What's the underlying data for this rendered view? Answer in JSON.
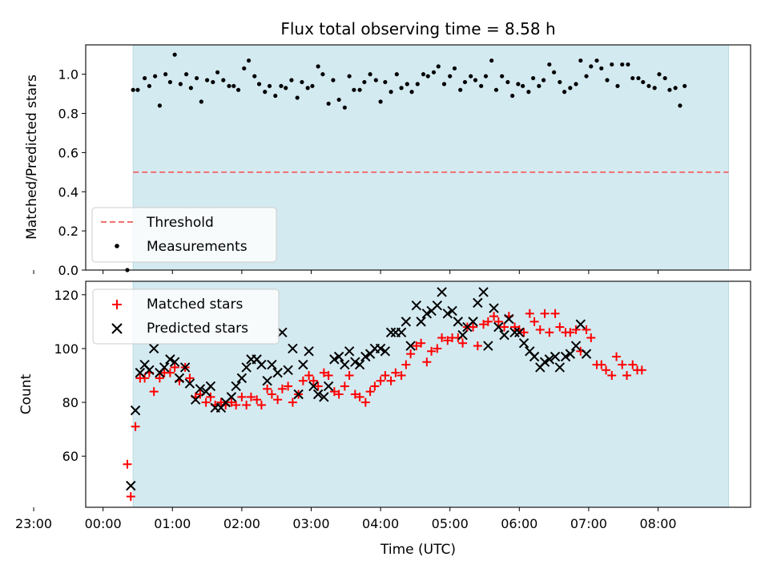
{
  "chart_data": {
    "type": "scatter",
    "title": "Flux total observing time = 8.58 h",
    "xlabel": "Time (UTC)",
    "x_ticks": [
      "23:00",
      "00:00",
      "01:00",
      "02:00",
      "03:00",
      "04:00",
      "05:00",
      "06:00",
      "07:00",
      "08:00"
    ],
    "x_range_minutes": [
      -15,
      560
    ],
    "observing_window_minutes": [
      26,
      541
    ],
    "shade_color": "#d4eaf1",
    "top": {
      "ylabel": "Matched/Predicted stars",
      "ylim": [
        0.0,
        1.15
      ],
      "y_ticks": [
        "0.0",
        "0.2",
        "0.4",
        "0.6",
        "0.8",
        "1.0"
      ],
      "threshold": 0.5,
      "threshold_color": "#f07070",
      "legend": {
        "threshold_label": "Threshold",
        "measurements_label": "Measurements",
        "placement": "lower-left"
      },
      "measurements": [
        [
          21,
          0.0
        ],
        [
          26,
          0.92
        ],
        [
          30,
          0.92
        ],
        [
          36,
          0.98
        ],
        [
          40,
          0.94
        ],
        [
          45,
          0.99
        ],
        [
          49,
          0.84
        ],
        [
          54,
          1.0
        ],
        [
          58,
          0.96
        ],
        [
          62,
          1.1
        ],
        [
          67,
          0.95
        ],
        [
          72,
          1.0
        ],
        [
          76,
          0.93
        ],
        [
          81,
          0.98
        ],
        [
          85,
          0.86
        ],
        [
          90,
          0.97
        ],
        [
          95,
          0.96
        ],
        [
          99,
          1.01
        ],
        [
          104,
          0.97
        ],
        [
          109,
          0.94
        ],
        [
          113,
          0.94
        ],
        [
          117,
          0.92
        ],
        [
          122,
          1.03
        ],
        [
          126,
          1.07
        ],
        [
          131,
          0.99
        ],
        [
          135,
          0.95
        ],
        [
          140,
          0.91
        ],
        [
          144,
          0.94
        ],
        [
          149,
          0.89
        ],
        [
          154,
          0.94
        ],
        [
          158,
          0.93
        ],
        [
          163,
          0.97
        ],
        [
          168,
          0.88
        ],
        [
          172,
          0.96
        ],
        [
          177,
          0.93
        ],
        [
          181,
          0.94
        ],
        [
          186,
          1.04
        ],
        [
          190,
          1.0
        ],
        [
          195,
          0.85
        ],
        [
          199,
          0.97
        ],
        [
          204,
          0.87
        ],
        [
          209,
          0.83
        ],
        [
          213,
          0.99
        ],
        [
          217,
          0.92
        ],
        [
          222,
          0.92
        ],
        [
          226,
          0.96
        ],
        [
          231,
          1.0
        ],
        [
          236,
          0.97
        ],
        [
          240,
          0.86
        ],
        [
          244,
          0.96
        ],
        [
          249,
          0.91
        ],
        [
          254,
          1.0
        ],
        [
          258,
          0.93
        ],
        [
          263,
          0.95
        ],
        [
          267,
          0.91
        ],
        [
          272,
          0.95
        ],
        [
          277,
          1.0
        ],
        [
          281,
          0.99
        ],
        [
          286,
          1.01
        ],
        [
          290,
          1.04
        ],
        [
          295,
          0.95
        ],
        [
          300,
          0.99
        ],
        [
          304,
          1.03
        ],
        [
          309,
          0.92
        ],
        [
          313,
          0.96
        ],
        [
          318,
          0.99
        ],
        [
          322,
          0.97
        ],
        [
          327,
          0.94
        ],
        [
          331,
          0.99
        ],
        [
          336,
          1.07
        ],
        [
          340,
          0.92
        ],
        [
          345,
          0.99
        ],
        [
          350,
          0.96
        ],
        [
          354,
          0.89
        ],
        [
          359,
          0.95
        ],
        [
          363,
          0.94
        ],
        [
          368,
          0.91
        ],
        [
          372,
          0.98
        ],
        [
          377,
          0.94
        ],
        [
          381,
          0.97
        ],
        [
          386,
          1.05
        ],
        [
          390,
          1.01
        ],
        [
          395,
          0.96
        ],
        [
          399,
          0.91
        ],
        [
          404,
          0.93
        ],
        [
          409,
          0.95
        ],
        [
          413,
          1.07
        ],
        [
          418,
          0.99
        ],
        [
          422,
          1.04
        ],
        [
          427,
          1.07
        ],
        [
          431,
          1.03
        ],
        [
          436,
          0.97
        ],
        [
          440,
          1.05
        ],
        [
          445,
          0.94
        ],
        [
          449,
          1.05
        ],
        [
          454,
          1.05
        ],
        [
          458,
          0.98
        ],
        [
          463,
          0.98
        ],
        [
          467,
          0.96
        ],
        [
          472,
          0.94
        ],
        [
          477,
          0.93
        ],
        [
          481,
          1.0
        ],
        [
          486,
          0.98
        ],
        [
          490,
          0.92
        ],
        [
          495,
          0.93
        ],
        [
          499,
          0.84
        ],
        [
          503,
          0.94
        ]
      ]
    },
    "bottom": {
      "ylabel": "Count",
      "ylim": [
        41,
        125
      ],
      "y_ticks": [
        "60",
        "80",
        "100",
        "120"
      ],
      "legend": {
        "matched_label": "Matched stars",
        "predicted_label": "Predicted stars",
        "placement": "upper-left"
      },
      "matched_color": "#ff0000",
      "predicted_color": "#000000",
      "series": [
        {
          "name": "Matched stars",
          "points": [
            [
              21,
              57
            ],
            [
              24,
              45
            ],
            [
              28,
              71
            ],
            [
              32,
              89
            ],
            [
              36,
              89
            ],
            [
              40,
              91
            ],
            [
              44,
              84
            ],
            [
              49,
              89
            ],
            [
              53,
              91
            ],
            [
              58,
              91
            ],
            [
              62,
              93
            ],
            [
              66,
              88
            ],
            [
              71,
              93
            ],
            [
              75,
              89
            ],
            [
              80,
              82
            ],
            [
              84,
              83
            ],
            [
              89,
              80
            ],
            [
              93,
              82
            ],
            [
              97,
              79
            ],
            [
              102,
              80
            ],
            [
              106,
              79
            ],
            [
              111,
              80
            ],
            [
              115,
              79
            ],
            [
              120,
              82
            ],
            [
              124,
              79
            ],
            [
              128,
              82
            ],
            [
              133,
              81
            ],
            [
              137,
              79
            ],
            [
              142,
              85
            ],
            [
              146,
              83
            ],
            [
              151,
              81
            ],
            [
              155,
              85
            ],
            [
              160,
              86
            ],
            [
              164,
              80
            ],
            [
              169,
              83
            ],
            [
              173,
              88
            ],
            [
              178,
              90
            ],
            [
              182,
              88
            ],
            [
              186,
              86
            ],
            [
              191,
              91
            ],
            [
              195,
              90
            ],
            [
              200,
              84
            ],
            [
              204,
              83
            ],
            [
              209,
              86
            ],
            [
              213,
              90
            ],
            [
              218,
              83
            ],
            [
              222,
              82
            ],
            [
              227,
              80
            ],
            [
              231,
              84
            ],
            [
              235,
              86
            ],
            [
              240,
              88
            ],
            [
              244,
              90
            ],
            [
              249,
              88
            ],
            [
              253,
              91
            ],
            [
              258,
              90
            ],
            [
              262,
              94
            ],
            [
              266,
              98
            ],
            [
              271,
              101
            ],
            [
              275,
              102
            ],
            [
              280,
              95
            ],
            [
              284,
              99
            ],
            [
              289,
              100
            ],
            [
              293,
              104
            ],
            [
              298,
              103
            ],
            [
              302,
              104
            ],
            [
              307,
              104
            ],
            [
              311,
              102
            ],
            [
              315,
              108
            ],
            [
              320,
              108
            ],
            [
              324,
              101
            ],
            [
              329,
              109
            ],
            [
              333,
              110
            ],
            [
              338,
              112
            ],
            [
              342,
              110
            ],
            [
              347,
              108
            ],
            [
              351,
              112
            ],
            [
              356,
              108
            ],
            [
              360,
              107
            ],
            [
              364,
              106
            ],
            [
              369,
              113
            ],
            [
              373,
              110
            ],
            [
              378,
              107
            ],
            [
              382,
              113
            ],
            [
              386,
              106
            ],
            [
              391,
              113
            ],
            [
              395,
              108
            ],
            [
              400,
              106
            ],
            [
              404,
              106
            ],
            [
              409,
              107
            ],
            [
              413,
              99
            ],
            [
              418,
              107
            ],
            [
              422,
              104
            ],
            [
              427,
              94
            ],
            [
              431,
              94
            ],
            [
              435,
              92
            ],
            [
              440,
              90
            ],
            [
              444,
              97
            ],
            [
              449,
              94
            ],
            [
              453,
              90
            ],
            [
              458,
              94
            ],
            [
              462,
              92
            ],
            [
              466,
              92
            ]
          ]
        },
        {
          "name": "Predicted stars",
          "points": [
            [
              24,
              49
            ],
            [
              28,
              77
            ],
            [
              32,
              91
            ],
            [
              36,
              94
            ],
            [
              40,
              92
            ],
            [
              44,
              100
            ],
            [
              49,
              91
            ],
            [
              53,
              93
            ],
            [
              58,
              96
            ],
            [
              62,
              95
            ],
            [
              66,
              89
            ],
            [
              71,
              93
            ],
            [
              75,
              87
            ],
            [
              80,
              81
            ],
            [
              84,
              85
            ],
            [
              89,
              84
            ],
            [
              93,
              86
            ],
            [
              97,
              78
            ],
            [
              102,
              78
            ],
            [
              106,
              80
            ],
            [
              111,
              82
            ],
            [
              115,
              86
            ],
            [
              120,
              89
            ],
            [
              124,
              93
            ],
            [
              128,
              96
            ],
            [
              133,
              96
            ],
            [
              137,
              94
            ],
            [
              142,
              88
            ],
            [
              146,
              94
            ],
            [
              151,
              91
            ],
            [
              155,
              106
            ],
            [
              160,
              92
            ],
            [
              164,
              100
            ],
            [
              169,
              83
            ],
            [
              173,
              94
            ],
            [
              178,
              99
            ],
            [
              182,
              86
            ],
            [
              186,
              83
            ],
            [
              191,
              82
            ],
            [
              195,
              86
            ],
            [
              200,
              96
            ],
            [
              204,
              97
            ],
            [
              209,
              94
            ],
            [
              213,
              99
            ],
            [
              218,
              95
            ],
            [
              222,
              94
            ],
            [
              227,
              97
            ],
            [
              231,
              98
            ],
            [
              235,
              100
            ],
            [
              240,
              100
            ],
            [
              244,
              99
            ],
            [
              249,
              106
            ],
            [
              253,
              106
            ],
            [
              258,
              106
            ],
            [
              262,
              110
            ],
            [
              266,
              101
            ],
            [
              271,
              116
            ],
            [
              275,
              110
            ],
            [
              280,
              113
            ],
            [
              284,
              114
            ],
            [
              289,
              116
            ],
            [
              293,
              121
            ],
            [
              298,
              113
            ],
            [
              302,
              114
            ],
            [
              307,
              110
            ],
            [
              311,
              105
            ],
            [
              315,
              108
            ],
            [
              320,
              110
            ],
            [
              324,
              117
            ],
            [
              329,
              121
            ],
            [
              333,
              101
            ],
            [
              338,
              115
            ],
            [
              342,
              108
            ],
            [
              347,
              105
            ],
            [
              351,
              111
            ],
            [
              356,
              106
            ],
            [
              360,
              106
            ],
            [
              364,
              102
            ],
            [
              369,
              99
            ],
            [
              373,
              97
            ],
            [
              378,
              93
            ],
            [
              382,
              95
            ],
            [
              386,
              96
            ],
            [
              391,
              97
            ],
            [
              395,
              93
            ],
            [
              400,
              97
            ],
            [
              404,
              98
            ],
            [
              409,
              101
            ],
            [
              413,
              109
            ],
            [
              418,
              98
            ]
          ]
        }
      ]
    }
  }
}
